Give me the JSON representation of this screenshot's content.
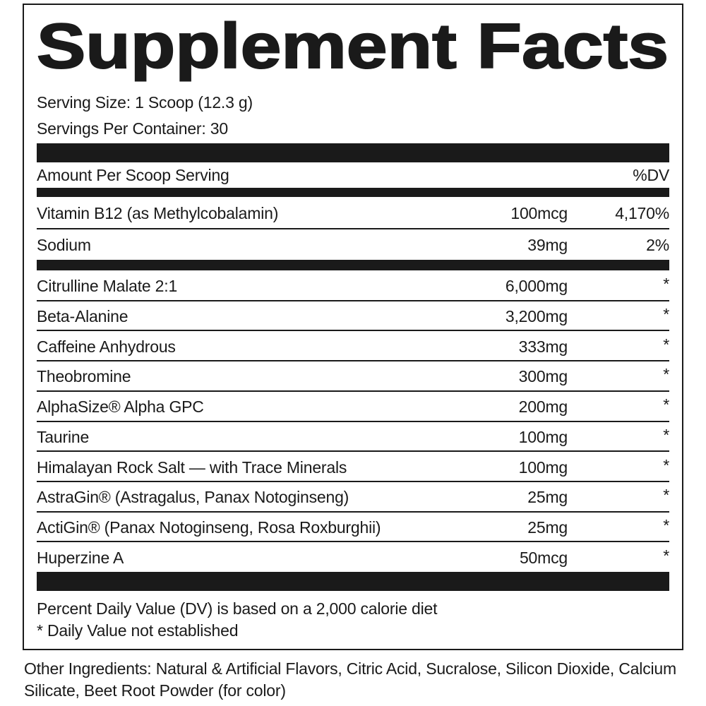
{
  "header": {
    "title": "Supplement Facts"
  },
  "serving": [
    "Serving Size: 1 Scoop (12.3 g)",
    "Servings Per Container: 30"
  ],
  "table": {
    "header": [
      "Amount Per Scoop Serving",
      "%DV"
    ],
    "vitamins": [
      [
        "Vitamin B12 (as Methylcobalamin)",
        "100mcg",
        "4,170%"
      ],
      [
        "Sodium",
        "39mg",
        "2%"
      ]
    ],
    "ingredients": [
      [
        "Citrulline Malate 2:1",
        "6,000mg",
        "*"
      ],
      [
        "Beta-Alanine",
        "3,200mg",
        "*"
      ],
      [
        "Caffeine Anhydrous",
        "333mg",
        "*"
      ],
      [
        "Theobromine",
        "300mg",
        "*"
      ],
      [
        "AlphaSize® Alpha GPC",
        "200mg",
        "*"
      ],
      [
        "Taurine",
        "100mg",
        "*"
      ],
      [
        "Himalayan Rock Salt — with Trace Minerals",
        "100mg",
        "*"
      ],
      [
        "AstraGin® (Astragalus, Panax Notoginseng)",
        "25mg",
        "*"
      ],
      [
        "ActiGin® (Panax Notoginseng, Rosa Roxburghii)",
        "25mg",
        "*"
      ],
      [
        "Huperzine A",
        "50mcg",
        "*"
      ]
    ]
  },
  "footnotes": [
    "Percent Daily Value (DV) is based on a 2,000 calorie diet",
    "* Daily Value not established"
  ],
  "other_ingredients": "Other Ingredients: Natural & Artificial Flavors, Citric Acid, Sucralose, Silicon Dioxide, Calcium Silicate, Beet Root Powder (for color)"
}
